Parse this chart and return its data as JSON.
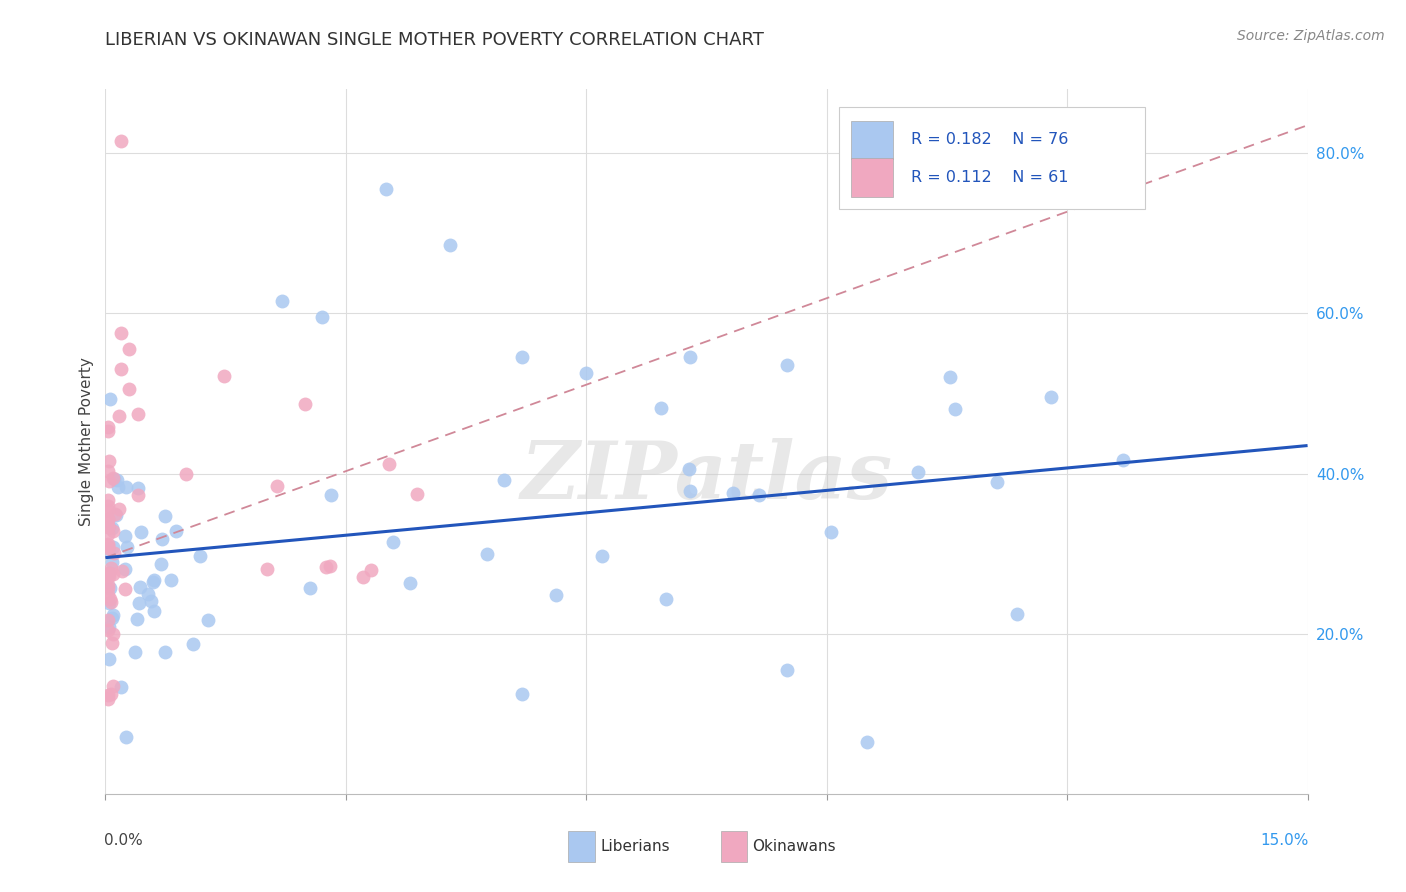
{
  "title": "LIBERIAN VS OKINAWAN SINGLE MOTHER POVERTY CORRELATION CHART",
  "source": "Source: ZipAtlas.com",
  "ylabel": "Single Mother Poverty",
  "liberian_color": "#aac8f0",
  "okinawan_color": "#f0a8c0",
  "liberian_line_color": "#2255bb",
  "okinawan_line_color": "#d08898",
  "watermark": "ZIPatlas",
  "background_color": "#ffffff",
  "xmin": 0.0,
  "xmax": 0.15,
  "ymin": 0.0,
  "ymax": 0.88,
  "yticks": [
    0.2,
    0.4,
    0.6,
    0.8
  ],
  "lib_trend_x": [
    0.0,
    0.15
  ],
  "lib_trend_y": [
    0.295,
    0.435
  ],
  "oki_trend_x": [
    0.0,
    0.15
  ],
  "oki_trend_y": [
    0.295,
    0.835
  ],
  "legend_R1": "R = 0.182",
  "legend_N1": "N = 76",
  "legend_R2": "R = 0.112",
  "legend_N2": "N = 61",
  "legend_color": "#2255bb",
  "title_fontsize": 13,
  "source_fontsize": 10,
  "tick_fontsize": 11,
  "ylabel_fontsize": 11
}
